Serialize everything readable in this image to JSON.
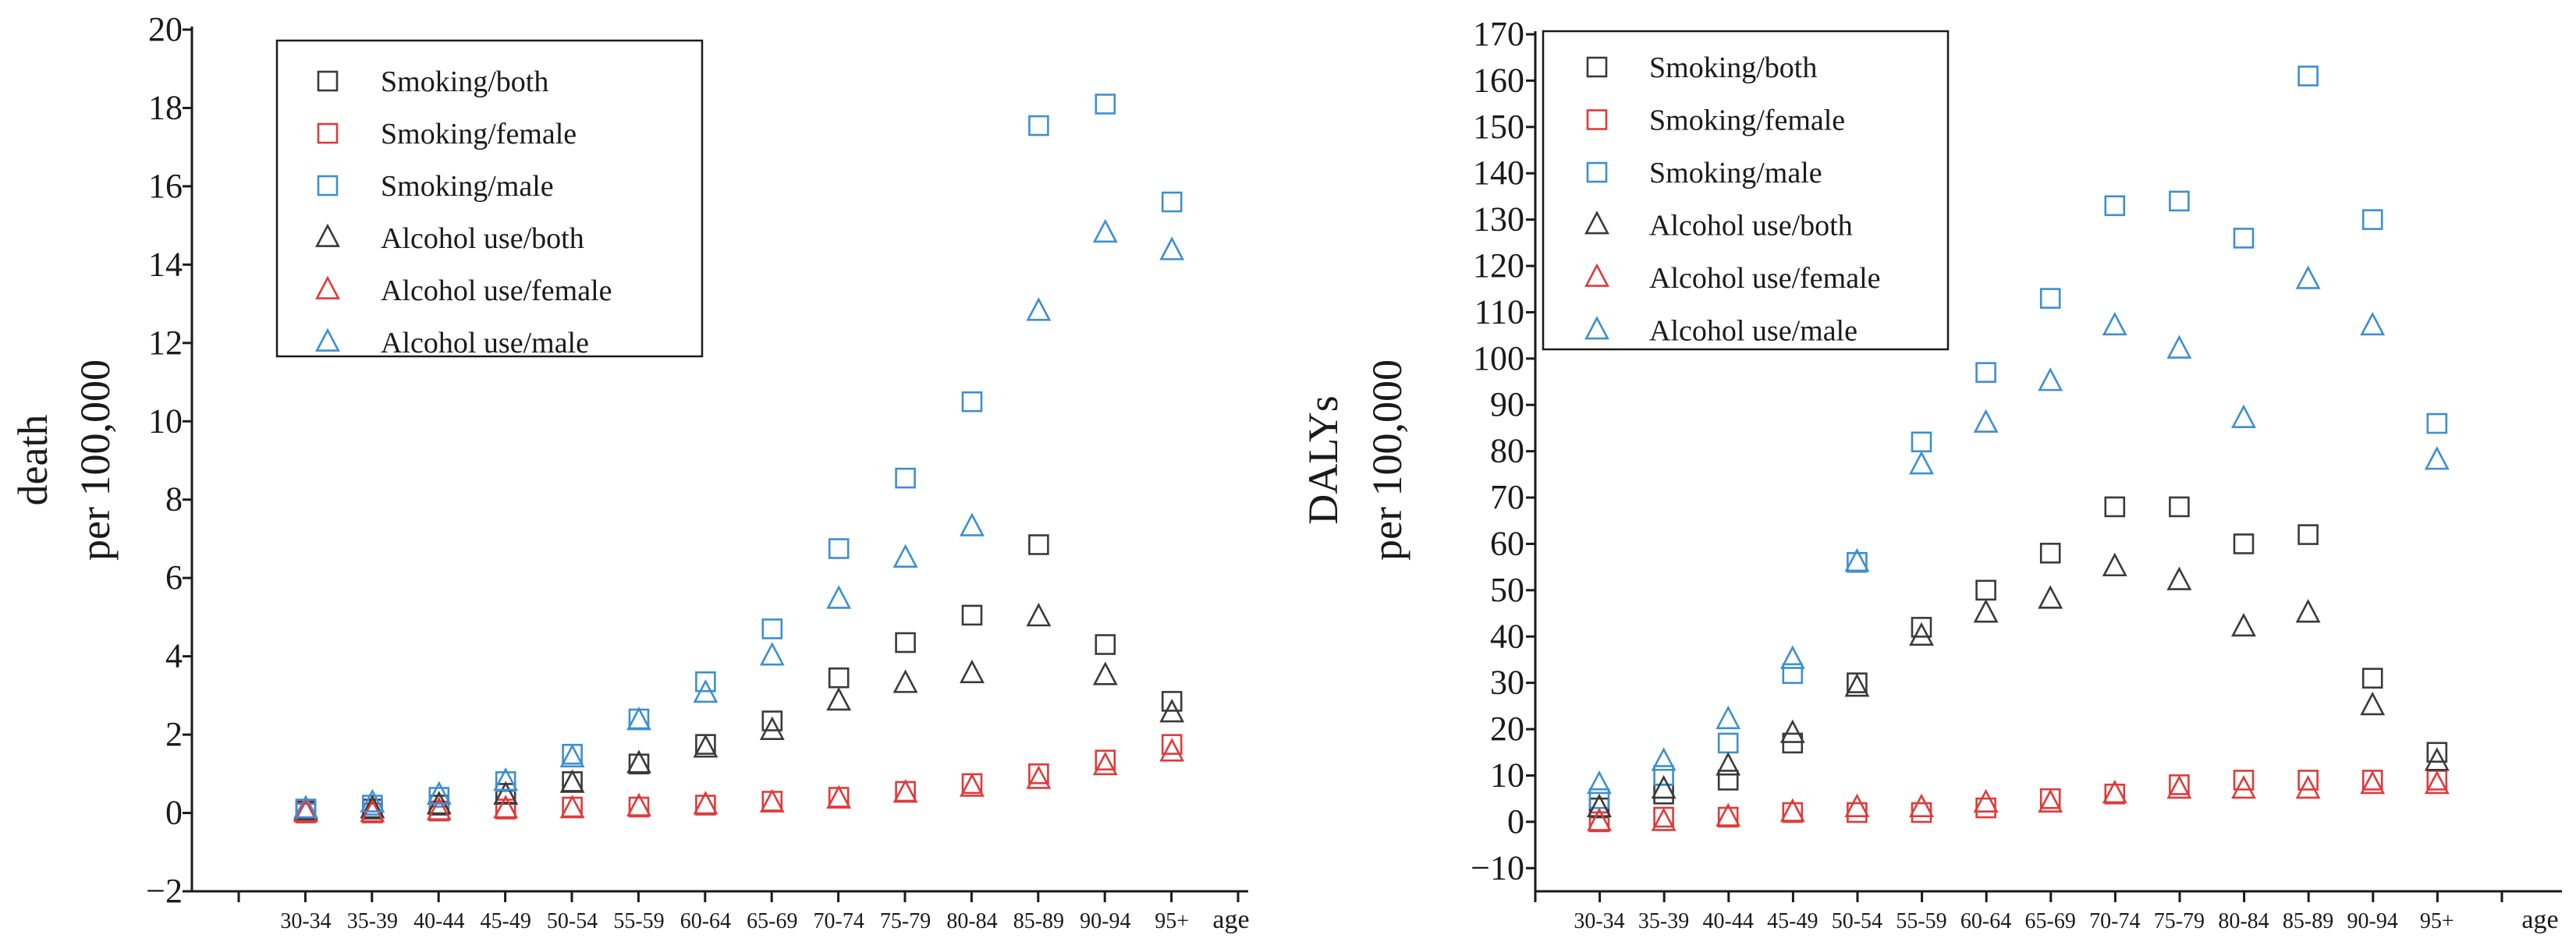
{
  "chart_data": [
    {
      "type": "scatter",
      "ylabel_lines": [
        "death",
        "per 100,000"
      ],
      "xlabel": "age",
      "ylim": [
        -2,
        20
      ],
      "yticks": [
        -2,
        0,
        2,
        4,
        6,
        8,
        10,
        12,
        14,
        16,
        18,
        20
      ],
      "ytick_labels": [
        "−2",
        "0",
        "2",
        "4",
        "6",
        "8",
        "10",
        "12",
        "14",
        "16",
        "18",
        "20"
      ],
      "categories": [
        "30-34",
        "35-39",
        "40-44",
        "45-49",
        "50-54",
        "55-59",
        "60-64",
        "65-69",
        "70-74",
        "75-79",
        "80-84",
        "85-89",
        "90-94",
        "95+"
      ],
      "legend_position": "top-left",
      "series": [
        {
          "name": "Smoking/both",
          "marker": "square",
          "color": "#3a3a3a",
          "values": [
            0.05,
            0.1,
            0.2,
            0.5,
            0.8,
            1.25,
            1.75,
            2.35,
            3.45,
            4.35,
            5.05,
            6.85,
            4.3,
            2.85
          ]
        },
        {
          "name": "Smoking/female",
          "marker": "square",
          "color": "#e03a3a",
          "values": [
            0.0,
            0.0,
            0.05,
            0.1,
            0.15,
            0.15,
            0.2,
            0.3,
            0.4,
            0.55,
            0.75,
            1.0,
            1.35,
            1.75
          ]
        },
        {
          "name": "Smoking/male",
          "marker": "square",
          "color": "#3d8fd1",
          "values": [
            0.1,
            0.2,
            0.4,
            0.8,
            1.5,
            2.4,
            3.35,
            4.7,
            6.75,
            8.55,
            10.5,
            17.55,
            18.1,
            15.6
          ]
        },
        {
          "name": "Alcohol use/both",
          "marker": "triangle",
          "color": "#3a3a3a",
          "values": [
            0.05,
            0.1,
            0.2,
            0.45,
            0.75,
            1.25,
            1.65,
            2.1,
            2.85,
            3.3,
            3.55,
            5.0,
            3.5,
            2.55
          ]
        },
        {
          "name": "Alcohol use/female",
          "marker": "triangle",
          "color": "#e03a3a",
          "values": [
            0.0,
            0.0,
            0.05,
            0.1,
            0.1,
            0.15,
            0.2,
            0.25,
            0.35,
            0.5,
            0.65,
            0.85,
            1.2,
            1.55
          ]
        },
        {
          "name": "Alcohol use/male",
          "marker": "triangle",
          "color": "#3d8fd1",
          "values": [
            0.1,
            0.25,
            0.45,
            0.8,
            1.4,
            2.35,
            3.05,
            4.0,
            5.45,
            6.5,
            7.3,
            12.8,
            14.8,
            14.35
          ]
        }
      ]
    },
    {
      "type": "scatter",
      "ylabel_lines": [
        "DALYs",
        "per 100,000"
      ],
      "xlabel": "age",
      "ylim": [
        -15,
        170
      ],
      "yticks": [
        -10,
        0,
        10,
        20,
        30,
        40,
        50,
        60,
        70,
        80,
        90,
        100,
        110,
        120,
        130,
        140,
        150,
        160,
        170
      ],
      "ytick_labels": [
        "−10",
        "0",
        "10",
        "20",
        "30",
        "40",
        "50",
        "60",
        "70",
        "80",
        "90",
        "100",
        "110",
        "120",
        "130",
        "140",
        "150",
        "160",
        "170"
      ],
      "categories": [
        "30-34",
        "35-39",
        "40-44",
        "45-49",
        "50-54",
        "55-59",
        "60-64",
        "65-69",
        "70-74",
        "75-79",
        "80-84",
        "85-89",
        "90-94",
        "95+"
      ],
      "legend_position": "top-left",
      "series": [
        {
          "name": "Smoking/both",
          "marker": "square",
          "color": "#3a3a3a",
          "values": [
            3,
            6,
            9,
            17,
            30,
            42,
            50,
            58,
            68,
            68,
            60,
            62,
            31,
            15
          ]
        },
        {
          "name": "Smoking/female",
          "marker": "square",
          "color": "#e03a3a",
          "values": [
            0,
            1,
            1,
            2,
            2,
            2,
            3,
            5,
            6,
            8,
            9,
            9,
            9,
            9
          ]
        },
        {
          "name": "Smoking/male",
          "marker": "square",
          "color": "#3d8fd1",
          "values": [
            5,
            10,
            17,
            32,
            56,
            82,
            97,
            113,
            133,
            134,
            126,
            161,
            130,
            86
          ]
        },
        {
          "name": "Alcohol use/both",
          "marker": "triangle",
          "color": "#3a3a3a",
          "values": [
            3,
            7,
            12,
            19,
            29,
            40,
            45,
            48,
            55,
            52,
            42,
            45,
            25,
            13
          ]
        },
        {
          "name": "Alcohol use/female",
          "marker": "triangle",
          "color": "#e03a3a",
          "values": [
            0,
            0,
            1,
            2,
            3,
            3,
            4,
            4,
            6,
            7,
            7,
            7,
            8,
            8
          ]
        },
        {
          "name": "Alcohol use/male",
          "marker": "triangle",
          "color": "#3d8fd1",
          "values": [
            8,
            13,
            22,
            35,
            56,
            77,
            86,
            95,
            107,
            102,
            87,
            117,
            107,
            78
          ]
        }
      ]
    }
  ]
}
